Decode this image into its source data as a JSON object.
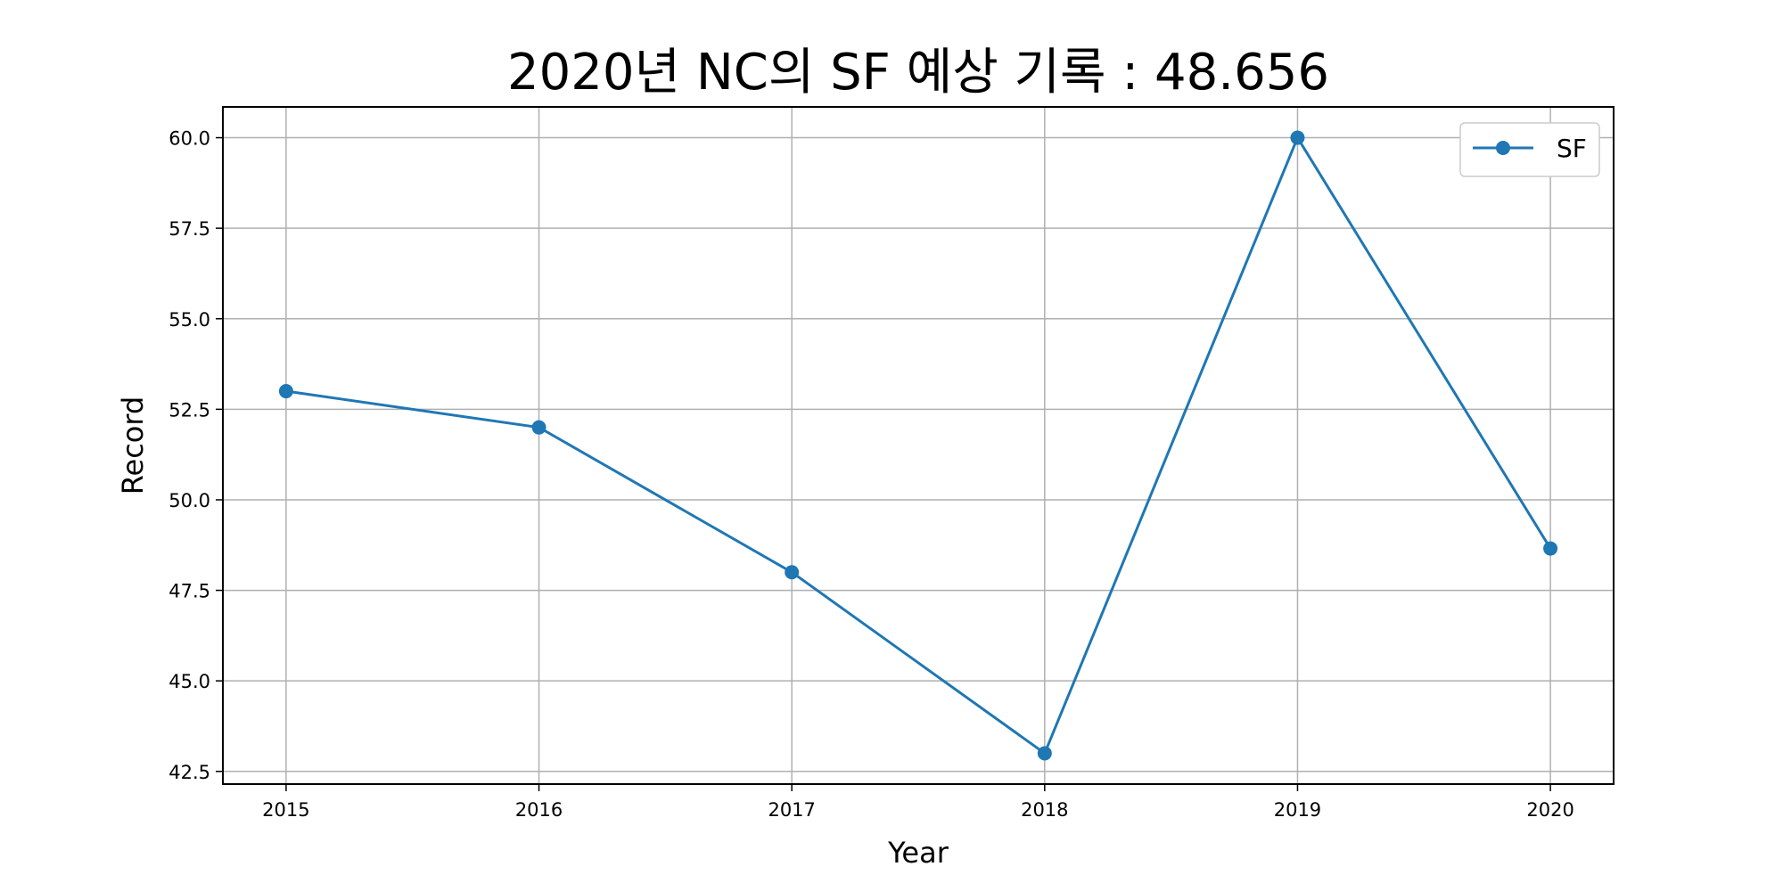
{
  "chart_data": {
    "type": "line",
    "title": "2020년 NC의 SF 예상 기록 : 48.656",
    "xlabel": "Year",
    "ylabel": "Record",
    "x": [
      2015,
      2016,
      2017,
      2018,
      2019,
      2020
    ],
    "x_tick_labels": [
      "2015",
      "2016",
      "2017",
      "2018",
      "2019",
      "2020"
    ],
    "xlim": [
      2014.75,
      2020.25
    ],
    "y_ticks": [
      42.5,
      45.0,
      47.5,
      50.0,
      52.5,
      55.0,
      57.5,
      60.0
    ],
    "y_tick_labels": [
      "42.5",
      "45.0",
      "47.5",
      "50.0",
      "52.5",
      "55.0",
      "57.5",
      "60.0"
    ],
    "ylim": [
      42.15,
      60.85
    ],
    "grid": true,
    "legend_position": "top-right",
    "series": [
      {
        "name": "SF",
        "color": "#1f77b4",
        "marker": "circle",
        "values": [
          53.0,
          52.0,
          48.0,
          43.0,
          60.0,
          48.656
        ]
      }
    ]
  }
}
